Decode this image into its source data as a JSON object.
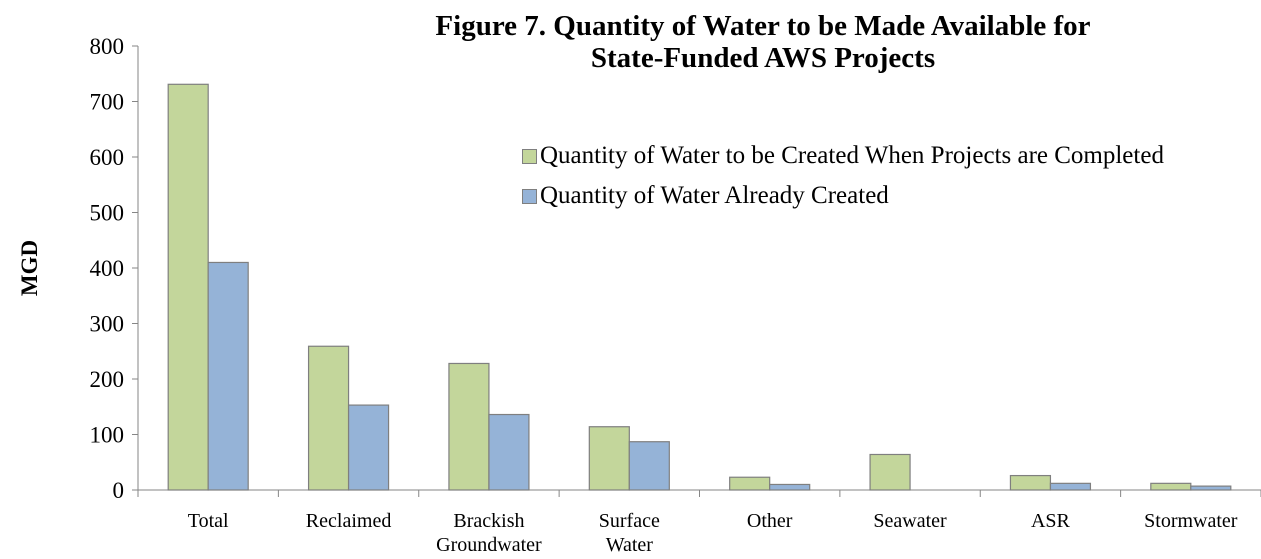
{
  "chart_data": {
    "type": "bar",
    "title": "Figure 7.  Quantity of Water to be Made Available for State-Funded AWS Projects",
    "y_label": "MGD",
    "categories": [
      "Total",
      "Reclaimed",
      "Brackish Groundwater",
      "Surface Water",
      "Other",
      "Seawater",
      "ASR",
      "Stormwater"
    ],
    "series": [
      {
        "name": "Quantity of Water to be Created When Projects are Completed",
        "color": "#c3d69b",
        "values": [
          731,
          259,
          228,
          114,
          23,
          64,
          26,
          12
        ]
      },
      {
        "name": "Quantity of Water Already Created",
        "color": "#95b3d7",
        "values": [
          410,
          153,
          136,
          87,
          10,
          0,
          12,
          7
        ]
      }
    ],
    "ylim": [
      0,
      800
    ],
    "yticks": [
      0,
      100,
      200,
      300,
      400,
      500,
      600,
      700,
      800
    ],
    "legend": "top-right"
  }
}
